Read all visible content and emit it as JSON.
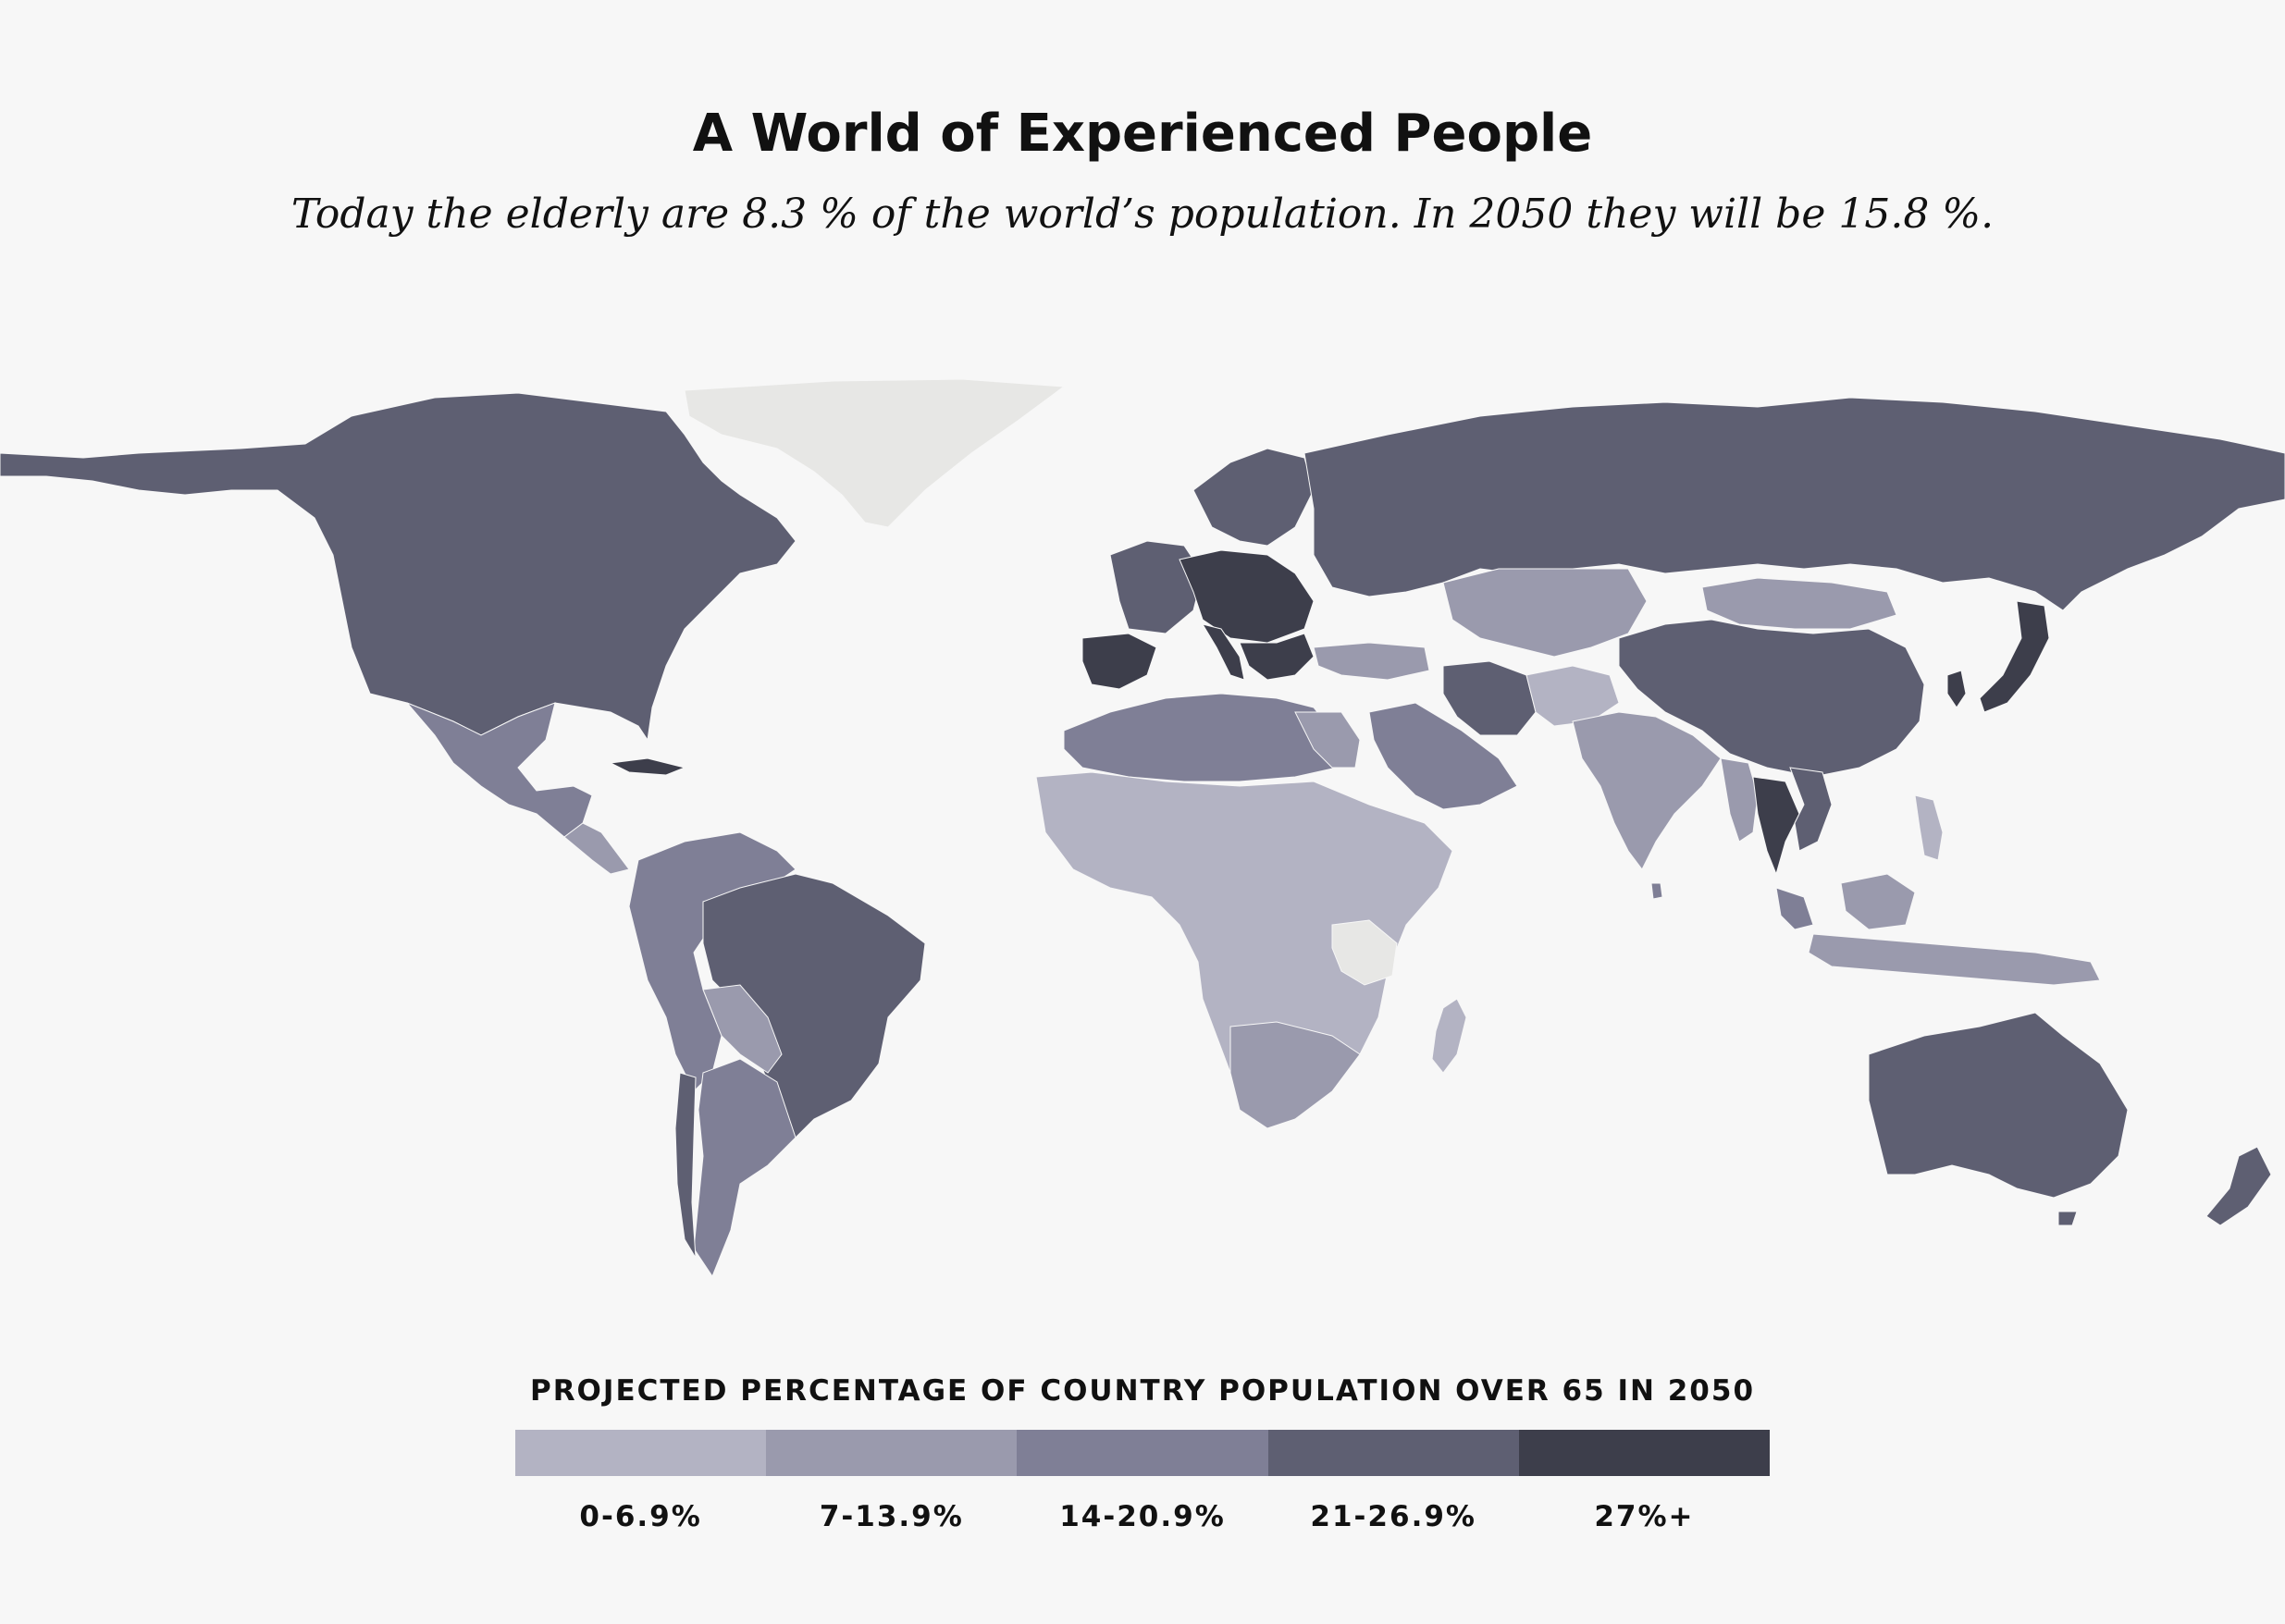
{
  "title": "A World of Experienced People",
  "subtitle": "Today the elderly are 8.3 % of the world’s population. In 2050 they will be 15.8 %.",
  "legend": {
    "title": "PROJECTED PERCENTAGE OF COUNTRY POPULATION OVER 65 IN 2050",
    "bins": [
      {
        "label": "0-6.9%",
        "color": "#b3b3c3"
      },
      {
        "label": "7-13.9%",
        "color": "#9a9aad"
      },
      {
        "label": "14-20.9%",
        "color": "#7f7f96"
      },
      {
        "label": "21-26.9%",
        "color": "#5e5f72"
      },
      {
        "label": "27%+",
        "color": "#3d3e4b"
      }
    ],
    "no_data_color": "#e7e7e5"
  },
  "chart_data": {
    "type": "choropleth",
    "title": "A World of Experienced People",
    "subtitle": "Today the elderly are 8.3 % of the world’s population. In 2050 they will be 15.8 %.",
    "legend_title": "PROJECTED PERCENTAGE OF COUNTRY POPULATION OVER 65 IN 2050",
    "categories": [
      "0-6.9%",
      "7-13.9%",
      "14-20.9%",
      "21-26.9%",
      "27%+"
    ],
    "legend_placement": "bottom-center"
  }
}
